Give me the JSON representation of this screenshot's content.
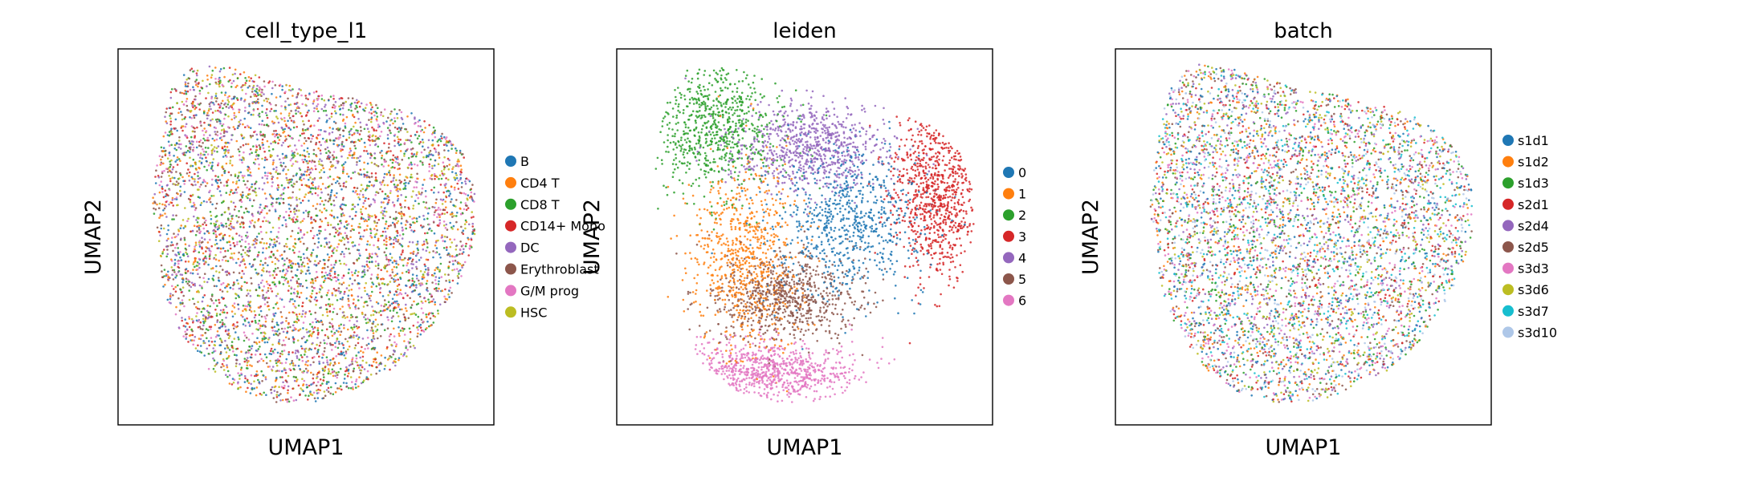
{
  "chart_data": [
    {
      "type": "scatter",
      "title": "cell_type_l1",
      "xlabel": "UMAP1",
      "ylabel": "UMAP2",
      "legend": "right",
      "grid": false,
      "legend_entries": [
        {
          "label": "B",
          "color": "#1f77b4"
        },
        {
          "label": "CD4 T",
          "color": "#ff7f0e"
        },
        {
          "label": "CD8 T",
          "color": "#2ca02c"
        },
        {
          "label": "CD14+ Mono",
          "color": "#d62728"
        },
        {
          "label": "DC",
          "color": "#9467bd"
        },
        {
          "label": "Erythroblast",
          "color": "#8c564b"
        },
        {
          "label": "G/M prog",
          "color": "#e377c2"
        },
        {
          "label": "HSC",
          "color": "#bcbd22"
        }
      ]
    },
    {
      "type": "scatter",
      "title": "leiden",
      "xlabel": "UMAP1",
      "ylabel": "UMAP2",
      "legend": "right",
      "grid": false,
      "legend_entries": [
        {
          "label": "0",
          "color": "#1f77b4"
        },
        {
          "label": "1",
          "color": "#ff7f0e"
        },
        {
          "label": "2",
          "color": "#2ca02c"
        },
        {
          "label": "3",
          "color": "#d62728"
        },
        {
          "label": "4",
          "color": "#9467bd"
        },
        {
          "label": "5",
          "color": "#8c564b"
        },
        {
          "label": "6",
          "color": "#e377c2"
        }
      ]
    },
    {
      "type": "scatter",
      "title": "batch",
      "xlabel": "UMAP1",
      "ylabel": "UMAP2",
      "legend": "right",
      "grid": false,
      "legend_entries": [
        {
          "label": "s1d1",
          "color": "#1f77b4"
        },
        {
          "label": "s1d2",
          "color": "#ff7f0e"
        },
        {
          "label": "s1d3",
          "color": "#2ca02c"
        },
        {
          "label": "s2d1",
          "color": "#d62728"
        },
        {
          "label": "s2d4",
          "color": "#9467bd"
        },
        {
          "label": "s2d5",
          "color": "#8c564b"
        },
        {
          "label": "s3d3",
          "color": "#e377c2"
        },
        {
          "label": "s3d6",
          "color": "#bcbd22"
        },
        {
          "label": "s3d7",
          "color": "#17becf"
        },
        {
          "label": "s3d10",
          "color": "#aec7e8"
        }
      ]
    }
  ]
}
